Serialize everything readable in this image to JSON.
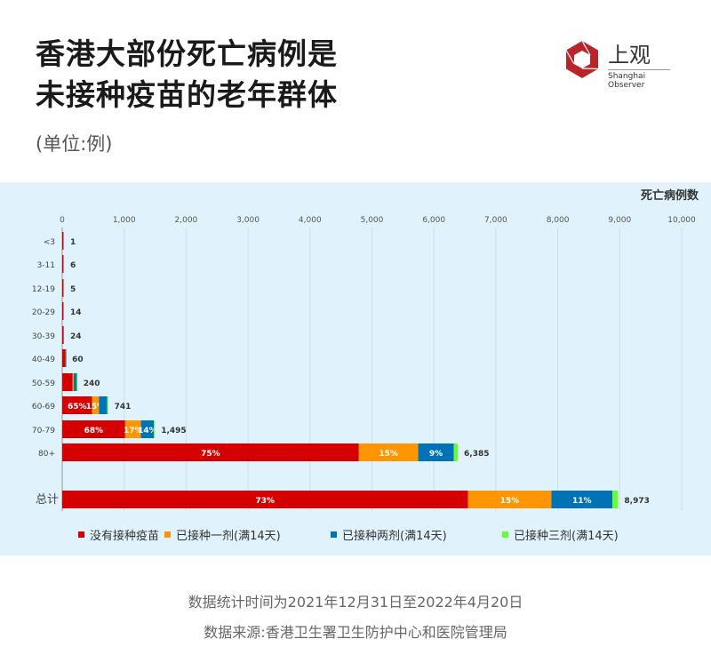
{
  "title_lines": [
    "香港大部份死亡病例是",
    "未接种疫苗的老年群体"
  ],
  "unit": "(单位:例)",
  "logo": {
    "cn": "上观",
    "en": "Shanghai Observer"
  },
  "chart_data": {
    "type": "bar",
    "orientation": "horizontal",
    "stacked": true,
    "xlabel": "死亡病例数",
    "xlim": [
      0,
      10000
    ],
    "xticks": [
      "0",
      "1,000",
      "2,000",
      "3,000",
      "4,000",
      "5,000",
      "6,000",
      "7,000",
      "8,000",
      "9,000",
      "10,000"
    ],
    "grid": true,
    "legend_position": "bottom",
    "series": [
      {
        "name": "没有接种疫苗",
        "color": "#d40000"
      },
      {
        "name": "已接种一剂(满14天)",
        "color": "#ff9500"
      },
      {
        "name": "已接种两剂(满14天)",
        "color": "#0073b7"
      },
      {
        "name": "已接种三剂(满14天)",
        "color": "#66ff33"
      }
    ],
    "categories": [
      "<3",
      "3-11",
      "12-19",
      "20-29",
      "30-39",
      "40-49",
      "50-59",
      "60-69",
      "70-79",
      "80+",
      "总计"
    ],
    "totals": [
      1,
      6,
      5,
      14,
      24,
      60,
      240,
      741,
      1495,
      6385,
      8973
    ],
    "total_labels": [
      "1",
      "6",
      "5",
      "14",
      "24",
      "60",
      "240",
      "741",
      "1,495",
      "6,385",
      "8,973"
    ],
    "shares_percent": [
      [
        100,
        0,
        0,
        0
      ],
      [
        100,
        0,
        0,
        0
      ],
      [
        100,
        0,
        0,
        0
      ],
      [
        100,
        0,
        0,
        0
      ],
      [
        100,
        0,
        0,
        0
      ],
      [
        85,
        5,
        10,
        0
      ],
      [
        70,
        8,
        20,
        2
      ],
      [
        65,
        15,
        18,
        2
      ],
      [
        68,
        17,
        14,
        1
      ],
      [
        75,
        15,
        9,
        1
      ],
      [
        73,
        15,
        11,
        1
      ]
    ],
    "segment_labels": [
      [],
      [],
      [],
      [],
      [],
      [],
      [],
      [
        "65%",
        "15%",
        "",
        ""
      ],
      [
        "68%",
        "17%",
        "14%",
        ""
      ],
      [
        "75%",
        "15%",
        "9%",
        ""
      ],
      [
        "73%",
        "15%",
        "11%",
        ""
      ]
    ]
  },
  "footer": {
    "period": "数据统计时间为2021年12月31日至2022年4月20日",
    "source": "数据来源:香港卫生署卫生防护中心和医院管理局"
  }
}
